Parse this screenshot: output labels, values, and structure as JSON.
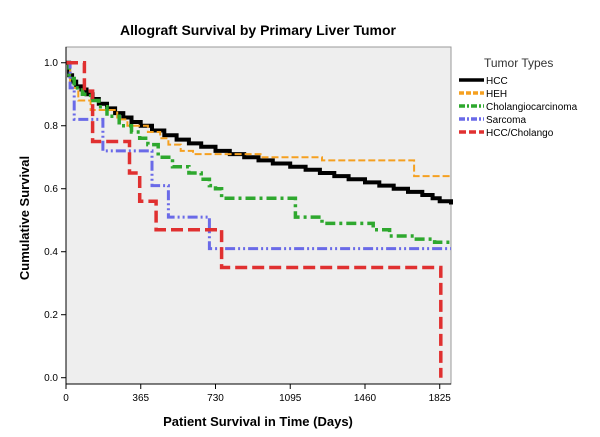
{
  "chart_data": {
    "type": "line",
    "title": "Allograft Survival by Primary Liver Tumor",
    "xlabel": "Patient Survival in Time (Days)",
    "ylabel": "Cumulative Survival",
    "xlim": [
      0,
      1880
    ],
    "ylim": [
      -0.02,
      1.05
    ],
    "xticks": [
      0,
      365,
      730,
      1095,
      1460,
      1825
    ],
    "yticks": [
      0.0,
      0.2,
      0.4,
      0.6,
      0.8,
      1.0
    ],
    "ytick_labels": [
      "0.0",
      "0.2",
      "0.4",
      "0.6",
      "0.8",
      "1.0"
    ],
    "step": true,
    "grid": false,
    "legend_title": "Tumor Types",
    "legend_position": "right, outside plot",
    "plot_background": "#eeeeee",
    "series": [
      {
        "name": "HCC",
        "color": "#000000",
        "dash": "solid",
        "x": [
          0,
          15,
          30,
          50,
          75,
          100,
          130,
          160,
          200,
          240,
          280,
          320,
          365,
          420,
          480,
          540,
          600,
          660,
          730,
          800,
          870,
          940,
          1010,
          1095,
          1170,
          1240,
          1310,
          1380,
          1460,
          1530,
          1600,
          1670,
          1740,
          1790,
          1825,
          1880
        ],
        "y": [
          1.0,
          0.96,
          0.94,
          0.925,
          0.915,
          0.9,
          0.885,
          0.87,
          0.855,
          0.84,
          0.826,
          0.812,
          0.8,
          0.785,
          0.77,
          0.756,
          0.744,
          0.733,
          0.72,
          0.71,
          0.7,
          0.69,
          0.68,
          0.67,
          0.66,
          0.65,
          0.64,
          0.63,
          0.62,
          0.61,
          0.6,
          0.59,
          0.58,
          0.57,
          0.56,
          0.55
        ]
      },
      {
        "name": "HEH",
        "color": "#f5a020",
        "dash": "dash",
        "x": [
          0,
          20,
          60,
          120,
          250,
          300,
          400,
          460,
          500,
          560,
          620,
          850,
          950,
          1150,
          1250,
          1350,
          1650,
          1700,
          1880
        ],
        "y": [
          1.0,
          0.92,
          0.88,
          0.85,
          0.82,
          0.8,
          0.78,
          0.76,
          0.74,
          0.72,
          0.71,
          0.71,
          0.7,
          0.7,
          0.69,
          0.69,
          0.69,
          0.64,
          0.64
        ]
      },
      {
        "name": "Cholangiocarcinoma",
        "color": "#2ea82e",
        "dash": "dashdot",
        "x": [
          0,
          15,
          40,
          80,
          120,
          160,
          200,
          260,
          320,
          360,
          400,
          450,
          520,
          600,
          660,
          700,
          730,
          760,
          900,
          1095,
          1120,
          1250,
          1500,
          1580,
          1700,
          1800,
          1880
        ],
        "y": [
          1.0,
          0.95,
          0.92,
          0.9,
          0.88,
          0.86,
          0.83,
          0.8,
          0.78,
          0.76,
          0.74,
          0.7,
          0.67,
          0.65,
          0.63,
          0.61,
          0.6,
          0.57,
          0.57,
          0.57,
          0.51,
          0.49,
          0.47,
          0.45,
          0.44,
          0.43,
          0.43
        ]
      },
      {
        "name": "Sarcoma",
        "color": "#6a6ae8",
        "dash": "dashdotdot",
        "x": [
          0,
          20,
          40,
          180,
          260,
          420,
          500,
          700,
          1880
        ],
        "y": [
          1.0,
          0.92,
          0.82,
          0.72,
          0.72,
          0.61,
          0.51,
          0.41,
          0.41
        ]
      },
      {
        "name": "HCC/Cholango",
        "color": "#e03030",
        "dash": "longdash",
        "x": [
          0,
          90,
          130,
          210,
          310,
          360,
          440,
          540,
          730,
          760,
          1280,
          1830,
          1830
        ],
        "y": [
          1.0,
          0.91,
          0.75,
          0.75,
          0.65,
          0.56,
          0.47,
          0.47,
          0.47,
          0.35,
          0.35,
          0.35,
          0.0
        ]
      }
    ]
  }
}
